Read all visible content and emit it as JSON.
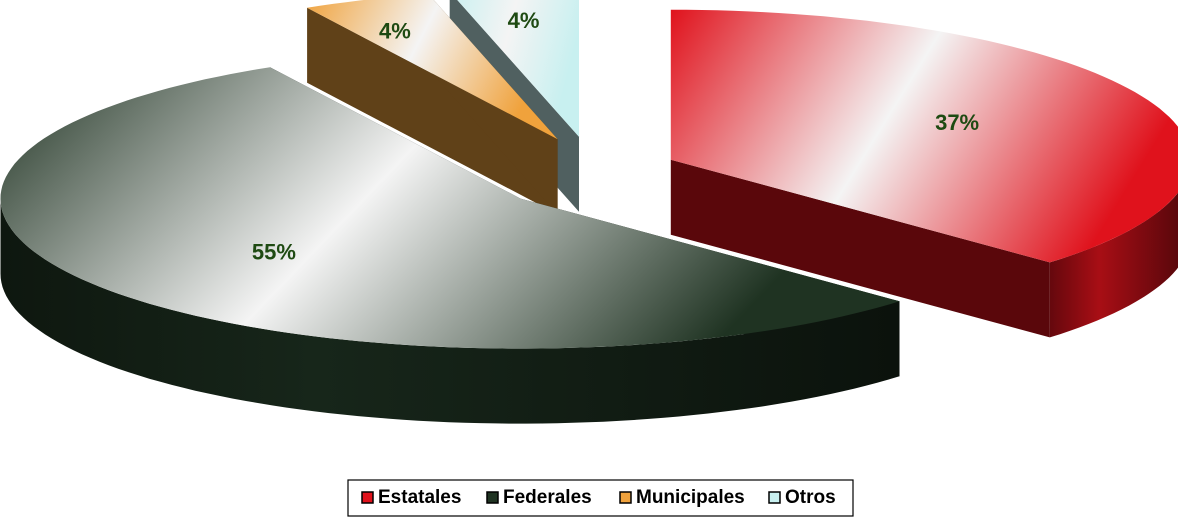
{
  "chart_data": {
    "type": "pie",
    "categories": [
      "Estatales",
      "Federales",
      "Municipales",
      "Otros"
    ],
    "values": [
      37,
      55,
      4,
      4
    ],
    "value_labels": [
      "37%",
      "55%",
      "4%",
      "4%"
    ],
    "colors": [
      "#e0121c",
      "#1f3322",
      "#f0a23c",
      "#c8f0f0"
    ],
    "legend": "bottom"
  }
}
